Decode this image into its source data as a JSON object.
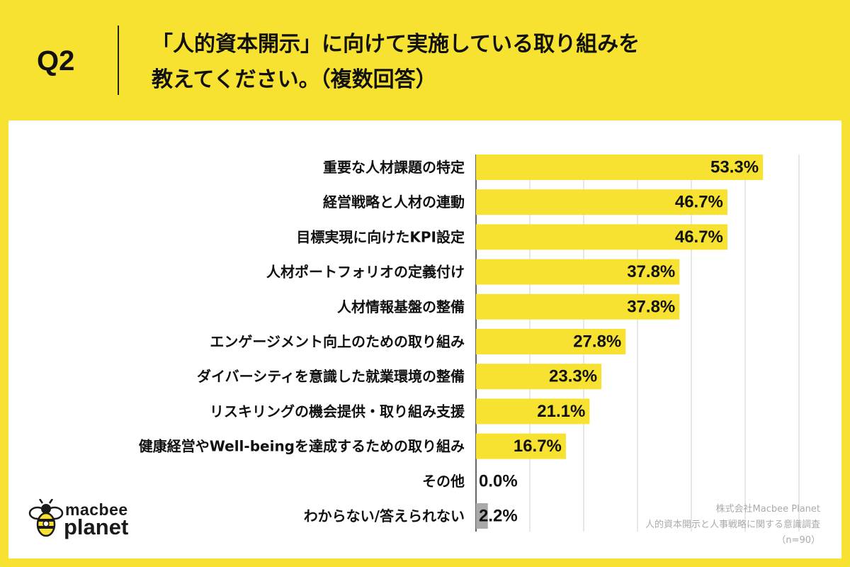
{
  "header": {
    "question": "Q2",
    "title_line1": "「人的資本開示」に向けて実施している取り組みを",
    "title_line2": "教えてください。（複数回答）"
  },
  "chart_data": {
    "type": "bar",
    "orientation": "horizontal",
    "categories": [
      "重要な人材課題の特定",
      "経営戦略と人材の連動",
      "目標実現に向けたKPI設定",
      "人材ポートフォリオの定義付け",
      "人材情報基盤の整備",
      "エンゲージメント向上のための取り組み",
      "ダイバーシティを意識した就業環境の整備",
      "リスキリングの機会提供・取り組み支援",
      "健康経営やWell-beingを達成するための取り組み",
      "その他",
      "わからない/答えられない"
    ],
    "values": [
      53.3,
      46.7,
      46.7,
      37.8,
      37.8,
      27.8,
      23.3,
      21.1,
      16.7,
      0.0,
      2.2
    ],
    "value_labels": [
      "53.3%",
      "46.7%",
      "46.7%",
      "37.8%",
      "37.8%",
      "27.8%",
      "23.3%",
      "21.1%",
      "16.7%",
      "0.0%",
      "2.2%"
    ],
    "bar_colors": [
      "#f8e231",
      "#f8e231",
      "#f8e231",
      "#f8e231",
      "#f8e231",
      "#f8e231",
      "#f8e231",
      "#f8e231",
      "#f8e231",
      "#f8e231",
      "#a9a9a9"
    ],
    "xlim": [
      0,
      60
    ],
    "grid": true,
    "unit": "%"
  },
  "logo": {
    "top": "macbee",
    "bottom": "planet"
  },
  "credit": {
    "company": "株式会社Macbee Planet",
    "survey": "人的資本開示と人事戦略に関する意識調査",
    "sample": "（n=90）"
  }
}
